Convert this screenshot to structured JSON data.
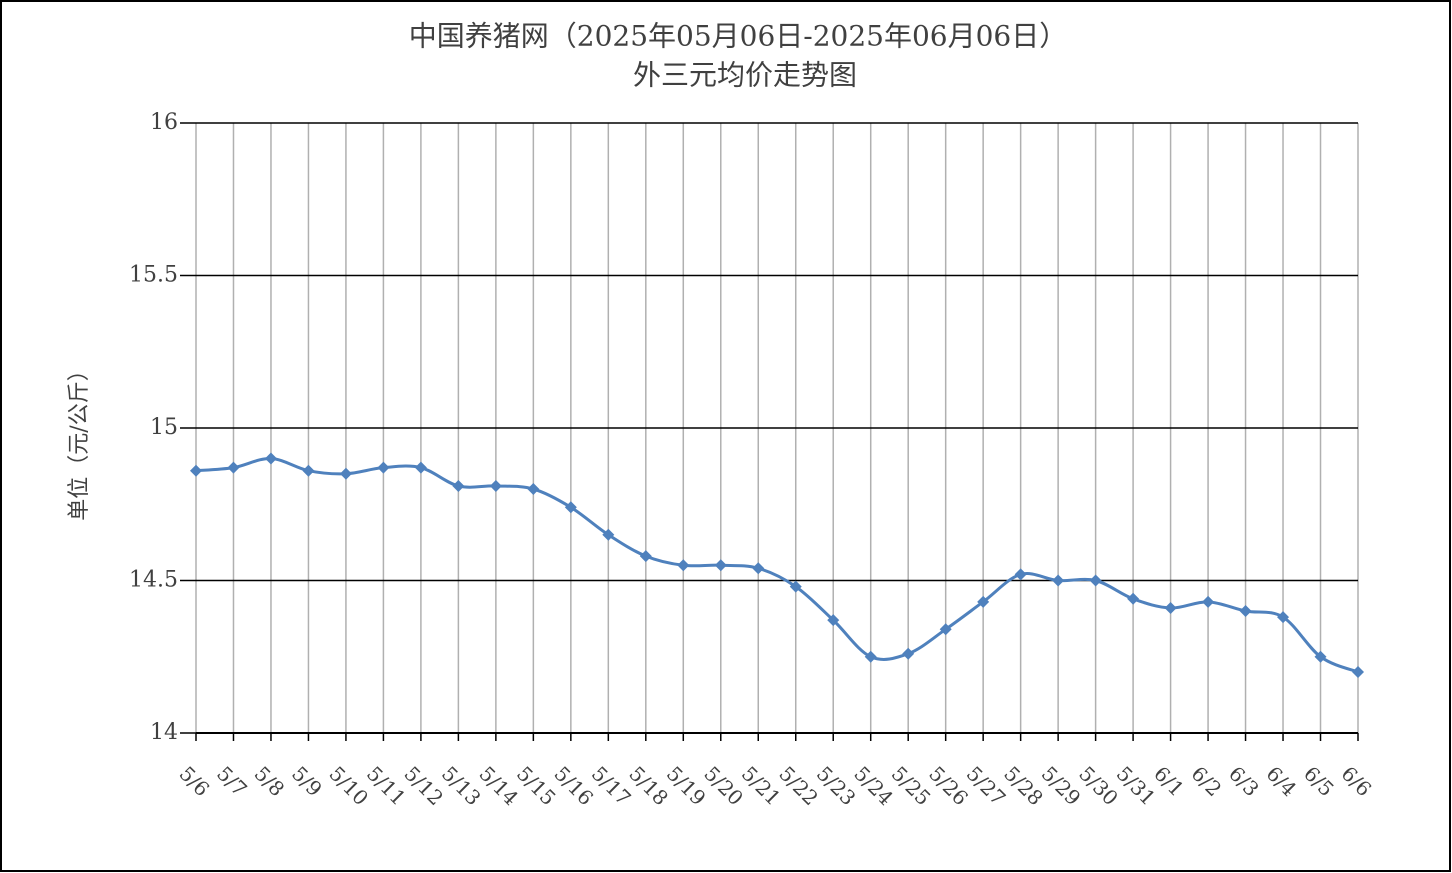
{
  "chart_data": {
    "type": "line",
    "title": "中国养猪网（2025年05月06日-2025年06月06日）",
    "subtitle": "外三元均价走势图",
    "y_label": "单位（元/公斤）",
    "categories": [
      "5/6",
      "5/7",
      "5/8",
      "5/9",
      "5/10",
      "5/11",
      "5/12",
      "5/13",
      "5/14",
      "5/15",
      "5/16",
      "5/17",
      "5/18",
      "5/19",
      "5/20",
      "5/21",
      "5/22",
      "5/23",
      "5/24",
      "5/25",
      "5/26",
      "5/27",
      "5/28",
      "5/29",
      "5/30",
      "5/31",
      "6/1",
      "6/2",
      "6/3",
      "6/4",
      "6/5",
      "6/6"
    ],
    "series": [
      {
        "color": "#4f81bd",
        "values": [
          14.86,
          14.87,
          14.9,
          14.86,
          14.85,
          14.87,
          14.87,
          14.81,
          14.81,
          14.8,
          14.74,
          14.65,
          14.58,
          14.55,
          14.55,
          14.54,
          14.48,
          14.37,
          14.25,
          14.26,
          14.34,
          14.43,
          14.52,
          14.5,
          14.5,
          14.44,
          14.41,
          14.43,
          14.4,
          14.38,
          14.25,
          14.2
        ]
      }
    ],
    "ylim": [
      14,
      16
    ],
    "yticks": [
      14,
      14.5,
      15,
      15.5,
      16
    ],
    "grid": true
  }
}
